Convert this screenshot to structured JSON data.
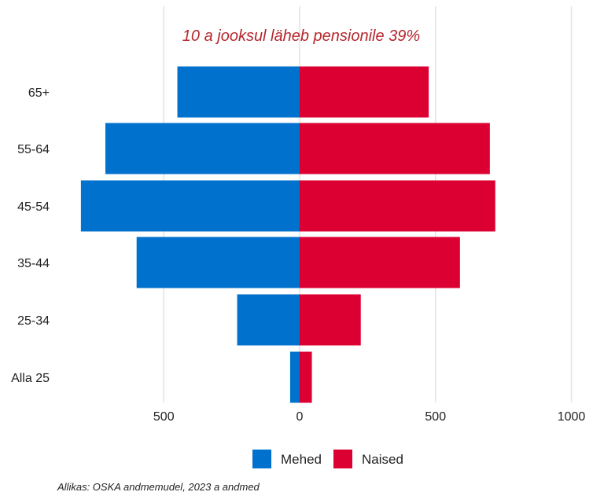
{
  "chart_data": {
    "type": "bar",
    "orientation": "horizontal",
    "layout": "population-pyramid",
    "annotation": "10 a jooksul läheb pensionile 39%",
    "categories": [
      "Alla 25",
      "25-34",
      "35-44",
      "45-54",
      "55-64",
      "65+"
    ],
    "series": [
      {
        "name": "Mehed",
        "color": "#0072ce",
        "direction": "left",
        "values": [
          35,
          230,
          600,
          805,
          715,
          450
        ]
      },
      {
        "name": "Naised",
        "color": "#dc0032",
        "direction": "right",
        "values": [
          45,
          225,
          590,
          720,
          700,
          475
        ]
      }
    ],
    "xlim": [
      -830,
      1000
    ],
    "xticks": [
      -500,
      0,
      500,
      1000
    ],
    "xtick_labels": [
      "500",
      "0",
      "500",
      "1000"
    ],
    "grid": "vertical",
    "legend": "bottom"
  },
  "source": "Allikas: OSKA andmemudel, 2023 a andmed"
}
